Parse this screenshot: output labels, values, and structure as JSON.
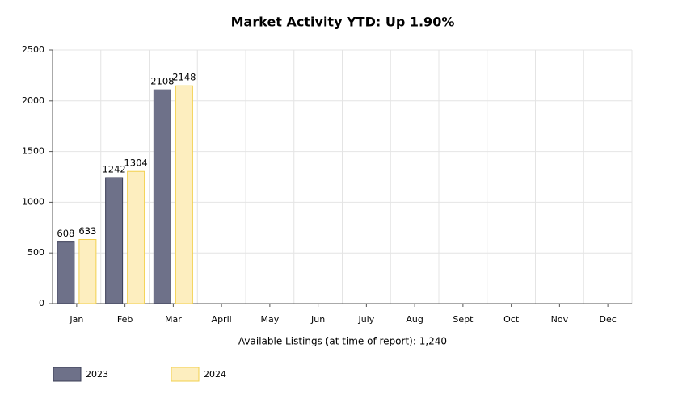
{
  "chart_data": {
    "type": "bar",
    "title": "Market Activity YTD: Up 1.90%",
    "x_label": "Available Listings (at time of report): 1,240",
    "categories": [
      "Jan",
      "Feb",
      "Mar",
      "April",
      "May",
      "Jun",
      "July",
      "Aug",
      "Sept",
      "Oct",
      "Nov",
      "Dec"
    ],
    "series": [
      {
        "name": "2023",
        "color": "#6e7189",
        "values": [
          608,
          1242,
          2108,
          null,
          null,
          null,
          null,
          null,
          null,
          null,
          null,
          null
        ]
      },
      {
        "name": "2024",
        "color": "#fdeebf",
        "values": [
          633,
          1304,
          2148,
          null,
          null,
          null,
          null,
          null,
          null,
          null,
          null,
          null
        ]
      }
    ],
    "ylim": [
      0,
      2500
    ],
    "yticks": [
      0,
      500,
      1000,
      1500,
      2000,
      2500
    ],
    "grid": true,
    "legend": "bottom-left"
  }
}
